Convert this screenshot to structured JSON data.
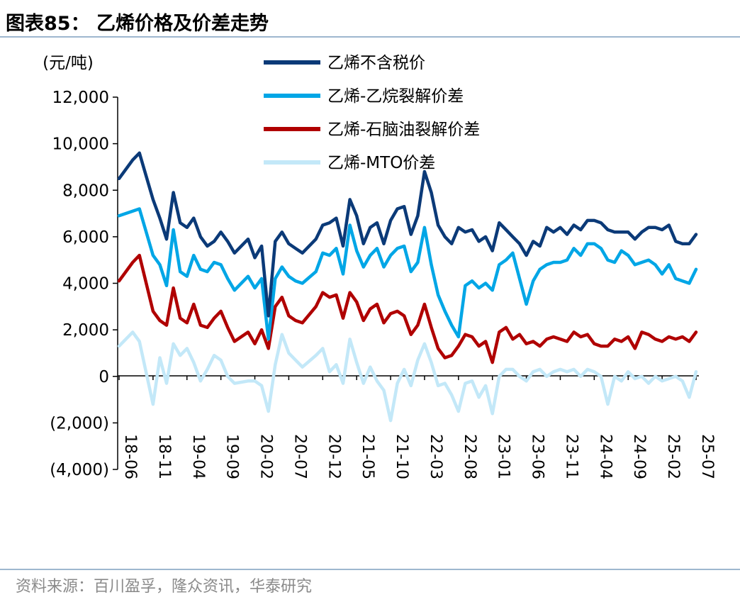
{
  "figure": {
    "title": "图表85：  乙烯价格及价差走势",
    "source": "资料来源：百川盈孚，隆众资讯，华泰研究"
  },
  "chart_data": {
    "type": "line",
    "title": "图表85：  乙烯价格及价差走势",
    "ylabel": "(元/吨)",
    "xlabel": "",
    "ylim": [
      -4000,
      12000
    ],
    "yticks": [
      {
        "value": -4000,
        "label": "(4,000)"
      },
      {
        "value": -2000,
        "label": "(2,000)"
      },
      {
        "value": 0,
        "label": "0"
      },
      {
        "value": 2000,
        "label": "2,000"
      },
      {
        "value": 4000,
        "label": "4,000"
      },
      {
        "value": 6000,
        "label": "6,000"
      },
      {
        "value": 8000,
        "label": "8,000"
      },
      {
        "value": 10000,
        "label": "10,000"
      },
      {
        "value": 12000,
        "label": "12,000"
      }
    ],
    "xticks": [
      "18-06",
      "18-11",
      "19-04",
      "19-09",
      "20-02",
      "20-07",
      "20-12",
      "21-05",
      "21-10",
      "22-03",
      "22-08",
      "23-01",
      "23-06",
      "23-11",
      "24-04",
      "24-09",
      "25-02",
      "25-07"
    ],
    "legend_position": "top-center",
    "grid": false,
    "series": [
      {
        "name": "乙烯不含税价",
        "color": "#0b3a78",
        "x": [
          "18-06",
          "18-08",
          "18-09",
          "18-11",
          "18-12",
          "19-01",
          "19-02",
          "19-03",
          "19-04",
          "19-05",
          "19-06",
          "19-07",
          "19-08",
          "19-09",
          "19-10",
          "19-11",
          "20-01",
          "20-02",
          "20-03",
          "20-04",
          "20-05",
          "20-06",
          "20-07",
          "20-08",
          "20-09",
          "20-11",
          "20-12",
          "21-01",
          "21-02",
          "21-03",
          "21-04",
          "21-05",
          "21-06",
          "21-07",
          "21-08",
          "21-09",
          "21-10",
          "21-11",
          "21-12",
          "22-01",
          "22-02",
          "22-03",
          "22-04",
          "22-05",
          "22-06",
          "22-07",
          "22-08",
          "22-09",
          "22-10",
          "22-11",
          "22-12",
          "23-01",
          "23-02",
          "23-03",
          "23-04",
          "23-05",
          "23-06",
          "23-07",
          "23-08",
          "23-09",
          "23-10",
          "23-11",
          "23-12",
          "24-01",
          "24-02",
          "24-03",
          "24-04",
          "24-05",
          "24-06",
          "24-07",
          "24-08",
          "24-09",
          "24-10",
          "24-11",
          "24-12",
          "25-01",
          "25-02",
          "25-03",
          "25-04",
          "25-05",
          "25-06",
          "25-07"
        ],
        "values": [
          8500,
          9300,
          9600,
          7600,
          6800,
          5900,
          7900,
          6600,
          6400,
          6800,
          6000,
          5600,
          5800,
          6200,
          5800,
          5300,
          5900,
          5100,
          5600,
          2600,
          5800,
          6200,
          5700,
          5500,
          5300,
          5900,
          6500,
          6600,
          6800,
          5600,
          7600,
          6900,
          5700,
          6400,
          6600,
          5700,
          6700,
          7200,
          7300,
          6100,
          6900,
          8800,
          7900,
          6500,
          6000,
          5700,
          6400,
          6200,
          6300,
          5800,
          6000,
          5400,
          6600,
          6300,
          6000,
          5700,
          5200,
          5800,
          5600,
          6400,
          6200,
          6400,
          6100,
          6500,
          6300,
          6700,
          6700,
          6600,
          6300,
          6200,
          6200,
          6200,
          5900,
          6200,
          6400,
          6400,
          6300,
          6500,
          5800,
          5700,
          5700,
          6100
        ]
      },
      {
        "name": "乙烯-乙烷裂解价差",
        "color": "#00a6e6",
        "x": [
          "18-06",
          "18-08",
          "18-09",
          "18-11",
          "18-12",
          "19-01",
          "19-02",
          "19-03",
          "19-04",
          "19-05",
          "19-06",
          "19-07",
          "19-08",
          "19-09",
          "19-10",
          "19-11",
          "20-01",
          "20-02",
          "20-03",
          "20-04",
          "20-05",
          "20-06",
          "20-07",
          "20-08",
          "20-09",
          "20-11",
          "20-12",
          "21-01",
          "21-02",
          "21-03",
          "21-04",
          "21-05",
          "21-06",
          "21-07",
          "21-08",
          "21-09",
          "21-10",
          "21-11",
          "21-12",
          "22-01",
          "22-02",
          "22-03",
          "22-04",
          "22-05",
          "22-06",
          "22-07",
          "22-08",
          "22-09",
          "22-10",
          "22-11",
          "22-12",
          "23-01",
          "23-02",
          "23-03",
          "23-04",
          "23-05",
          "23-06",
          "23-07",
          "23-08",
          "23-09",
          "23-10",
          "23-11",
          "23-12",
          "24-01",
          "24-02",
          "24-03",
          "24-04",
          "24-05",
          "24-06",
          "24-07",
          "24-08",
          "24-09",
          "24-10",
          "24-11",
          "24-12",
          "25-01",
          "25-02",
          "25-03",
          "25-04",
          "25-05",
          "25-06",
          "25-07"
        ],
        "values": [
          6900,
          7100,
          7200,
          5200,
          4800,
          3900,
          6300,
          4500,
          4300,
          5200,
          4600,
          4500,
          4900,
          4800,
          4200,
          3700,
          4300,
          3800,
          4200,
          1600,
          4200,
          4700,
          4300,
          4100,
          4000,
          4500,
          5300,
          5200,
          5500,
          4400,
          6500,
          5400,
          4700,
          5200,
          5500,
          4700,
          5200,
          5500,
          5600,
          4500,
          4900,
          6400,
          4800,
          3500,
          2800,
          2200,
          1700,
          3900,
          4100,
          3800,
          4000,
          3700,
          4800,
          5000,
          5300,
          4200,
          3100,
          4100,
          4600,
          4800,
          4900,
          4900,
          5000,
          5500,
          5200,
          5700,
          5700,
          5500,
          5000,
          4900,
          5400,
          5200,
          4800,
          4900,
          5000,
          4800,
          4400,
          4800,
          4200,
          4100,
          4000,
          4600
        ]
      },
      {
        "name": "乙烯-石脑油裂解价差",
        "color": "#b00000",
        "x": [
          "18-06",
          "18-08",
          "18-09",
          "18-11",
          "18-12",
          "19-01",
          "19-02",
          "19-03",
          "19-04",
          "19-05",
          "19-06",
          "19-07",
          "19-08",
          "19-09",
          "19-10",
          "19-11",
          "20-01",
          "20-02",
          "20-03",
          "20-04",
          "20-05",
          "20-06",
          "20-07",
          "20-08",
          "20-09",
          "20-11",
          "20-12",
          "21-01",
          "21-02",
          "21-03",
          "21-04",
          "21-05",
          "21-06",
          "21-07",
          "21-08",
          "21-09",
          "21-10",
          "21-11",
          "21-12",
          "22-01",
          "22-02",
          "22-03",
          "22-04",
          "22-05",
          "22-06",
          "22-07",
          "22-08",
          "22-09",
          "22-10",
          "22-11",
          "22-12",
          "23-01",
          "23-02",
          "23-03",
          "23-04",
          "23-05",
          "23-06",
          "23-07",
          "23-08",
          "23-09",
          "23-10",
          "23-11",
          "23-12",
          "24-01",
          "24-02",
          "24-03",
          "24-04",
          "24-05",
          "24-06",
          "24-07",
          "24-08",
          "24-09",
          "24-10",
          "24-11",
          "24-12",
          "25-01",
          "25-02",
          "25-03",
          "25-04",
          "25-05",
          "25-06",
          "25-07"
        ],
        "values": [
          4100,
          4900,
          5200,
          2800,
          2400,
          2200,
          3800,
          2500,
          2300,
          3100,
          2200,
          2100,
          2500,
          2800,
          2100,
          1500,
          1900,
          1400,
          2000,
          1200,
          3000,
          3400,
          2600,
          2400,
          2300,
          3000,
          3600,
          3400,
          3500,
          2500,
          3600,
          3200,
          2400,
          2900,
          3100,
          2300,
          2700,
          2800,
          2600,
          1800,
          2200,
          3100,
          2100,
          1200,
          800,
          900,
          1300,
          1800,
          1700,
          1300,
          1500,
          600,
          1900,
          2100,
          1600,
          1800,
          1400,
          1500,
          1300,
          1600,
          1700,
          1600,
          1500,
          1900,
          1700,
          1800,
          1400,
          1300,
          1300,
          1600,
          1500,
          1700,
          1200,
          1900,
          1800,
          1600,
          1500,
          1700,
          1600,
          1700,
          1500,
          1900
        ]
      },
      {
        "name": "乙烯-MTO价差",
        "color": "#c3e8f8",
        "x": [
          "18-06",
          "18-08",
          "18-09",
          "18-11",
          "18-12",
          "19-01",
          "19-02",
          "19-03",
          "19-04",
          "19-05",
          "19-06",
          "19-07",
          "19-08",
          "19-09",
          "19-10",
          "19-11",
          "20-01",
          "20-02",
          "20-03",
          "20-04",
          "20-05",
          "20-06",
          "20-07",
          "20-08",
          "20-09",
          "20-11",
          "20-12",
          "21-01",
          "21-02",
          "21-03",
          "21-04",
          "21-05",
          "21-06",
          "21-07",
          "21-08",
          "21-09",
          "21-10",
          "21-11",
          "21-12",
          "22-01",
          "22-02",
          "22-03",
          "22-04",
          "22-05",
          "22-06",
          "22-07",
          "22-08",
          "22-09",
          "22-10",
          "22-11",
          "22-12",
          "23-01",
          "23-02",
          "23-03",
          "23-04",
          "23-05",
          "23-06",
          "23-07",
          "23-08",
          "23-09",
          "23-10",
          "23-11",
          "23-12",
          "24-01",
          "24-02",
          "24-03",
          "24-04",
          "24-05",
          "24-06",
          "24-07",
          "24-08",
          "24-09",
          "24-10",
          "24-11",
          "24-12",
          "25-01",
          "25-02",
          "25-03",
          "25-04",
          "25-05",
          "25-06",
          "25-07"
        ],
        "values": [
          1300,
          1900,
          1500,
          -1200,
          800,
          -300,
          1400,
          900,
          1200,
          600,
          -200,
          300,
          900,
          700,
          0,
          -300,
          -200,
          -200,
          -400,
          -1500,
          500,
          1800,
          1000,
          700,
          400,
          900,
          1200,
          200,
          500,
          -300,
          1600,
          600,
          -300,
          400,
          -200,
          -600,
          -1900,
          -300,
          300,
          -400,
          700,
          1400,
          600,
          -400,
          -300,
          -800,
          -1500,
          -300,
          -200,
          -900,
          -400,
          -1600,
          0,
          300,
          300,
          0,
          -200,
          200,
          300,
          0,
          200,
          300,
          200,
          300,
          0,
          300,
          200,
          0,
          -1200,
          0,
          -200,
          200,
          -100,
          0,
          -300,
          0,
          -200,
          -100,
          0,
          -200,
          -900,
          200
        ]
      }
    ]
  }
}
